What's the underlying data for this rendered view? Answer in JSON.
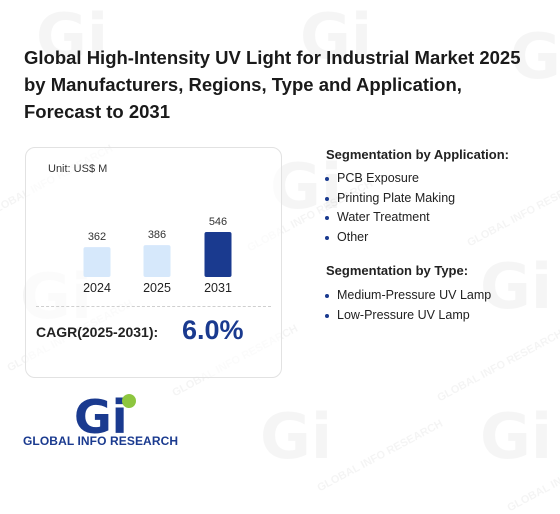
{
  "title": "Global High-Intensity UV Light for Industrial Market 2025 by Manufacturers, Regions, Type and Application, Forecast to 2031",
  "unit_label": "Unit: US$ M",
  "chart_data": {
    "type": "bar",
    "categories": [
      "2024",
      "2025",
      "2031"
    ],
    "values": [
      362,
      386,
      546
    ],
    "data_labels": [
      "362",
      "386",
      "546"
    ],
    "ylim": [
      0,
      546
    ],
    "bar_colors": [
      "#d6e8fb",
      "#d6e8fb",
      "#1a3a8f"
    ],
    "grid": false,
    "legend": "none"
  },
  "cagr": {
    "label": "CAGR(2025-2031):",
    "value": "6.0%"
  },
  "segmentation_application": {
    "title": "Segmentation by Application:",
    "items": [
      "PCB Exposure",
      "Printing Plate Making",
      "Water Treatment",
      "Other"
    ]
  },
  "segmentation_type": {
    "title": "Segmentation by Type:",
    "items": [
      "Medium-Pressure UV Lamp",
      "Low-Pressure UV Lamp"
    ]
  },
  "logo": {
    "text": "GLOBAL INFO RESEARCH",
    "mark": "Gi"
  },
  "watermark": "GLOBAL INFO RESEARCH",
  "colors": {
    "accent": "#1a3a8f",
    "bar_light": "#d6e8fb",
    "logo_green": "#8dc63f"
  }
}
